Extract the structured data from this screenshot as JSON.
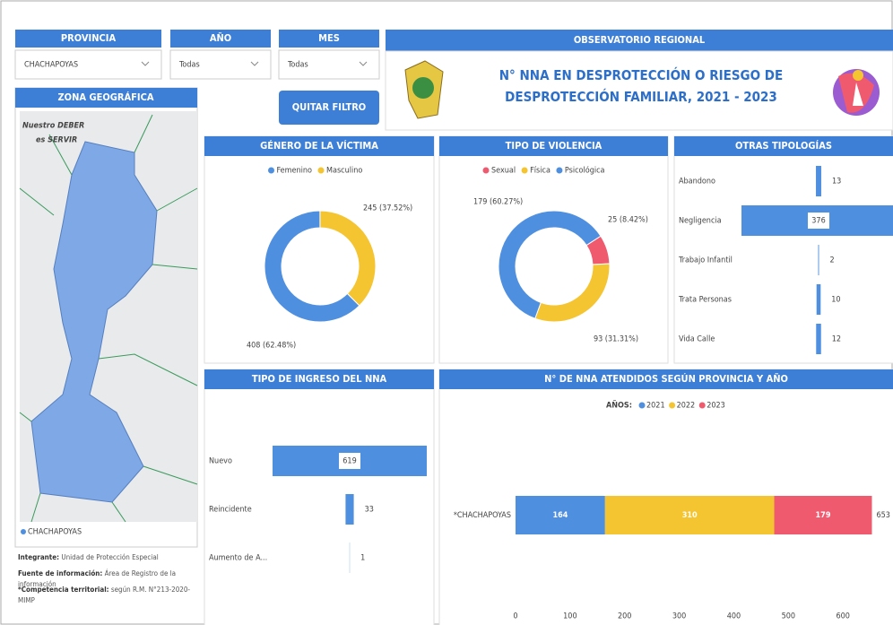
{
  "filters": [
    {
      "label": "PROVINCIA",
      "value": "CHACHAPOYAS"
    },
    {
      "label": "AÑO",
      "value": "Todas"
    },
    {
      "label": "MES",
      "value": "Todas"
    }
  ],
  "button": "QUITAR FILTRO",
  "header": {
    "title": "OBSERVATORIO REGIONAL",
    "subtitle": "N° NNA EN DESPROTECCIÓN O RIESGO DE DESPROTECCIÓN FAMILIAR, 2021 - 2023"
  },
  "map": {
    "title": "ZONA GEOGRÁFICA",
    "logo_top": "Nuestro DEBER",
    "logo_bottom": "es SERVIR",
    "legend": "CHACHAPOYAS"
  },
  "notes": [
    {
      "label": "Integrante:",
      "text": "Unidad de Protección Especial"
    },
    {
      "label": "Fuente de información:",
      "text": "Área de Registro de la información"
    },
    {
      "label": "*Competencia territorial:",
      "text": "según R.M. N°213-2020-MIMP"
    }
  ],
  "chart_data": [
    {
      "type": "donut",
      "title": "GÉNERO DE LA VÍCTIMA",
      "categories": [
        "Femenino",
        "Masculino"
      ],
      "values": [
        408,
        245
      ],
      "value_labels": [
        "408 (62.48%)",
        "245 (37.52%)"
      ],
      "colors": [
        "#4f8fe0",
        "#f5c431"
      ]
    },
    {
      "type": "donut",
      "title": "TIPO DE VIOLENCIA",
      "categories": [
        "Sexual",
        "Física",
        "Psicológica"
      ],
      "values": [
        25,
        93,
        179
      ],
      "value_labels": [
        "25 (8.42%)",
        "93 (31.31%)",
        "179 (60.27%)"
      ],
      "colors": [
        "#ef5a6f",
        "#f5c431",
        "#4f8fe0"
      ]
    },
    {
      "type": "funnel",
      "title": "OTRAS TIPOLOGÍAS",
      "categories": [
        "Abandono",
        "Negligencia",
        "Trabajo Infantil",
        "Trata Personas",
        "Vida Calle"
      ],
      "values": [
        13,
        376,
        2,
        10,
        12
      ],
      "color": "#4f8fe0"
    },
    {
      "type": "funnel",
      "title": "TIPO DE INGRESO DEL NNA",
      "categories": [
        "Nuevo",
        "Reincidente",
        "Aumento de A..."
      ],
      "values": [
        619,
        33,
        1
      ],
      "color": "#4f8fe0"
    },
    {
      "type": "stacked_hbar",
      "title": "N° DE NNA ATENDIDOS SEGÚN PROVINCIA Y AÑO",
      "legend_title": "AÑOS:",
      "categories": [
        "*CHACHAPOYAS"
      ],
      "series": [
        {
          "name": "2021",
          "color": "#4f8fe0",
          "values": [
            164
          ]
        },
        {
          "name": "2022",
          "color": "#f5c431",
          "values": [
            310
          ]
        },
        {
          "name": "2023",
          "color": "#ef5a6f",
          "values": [
            179
          ]
        }
      ],
      "totals": [
        653
      ],
      "xlim": [
        0,
        690
      ],
      "xticks": [
        0,
        100,
        200,
        300,
        400,
        500,
        600
      ]
    }
  ]
}
